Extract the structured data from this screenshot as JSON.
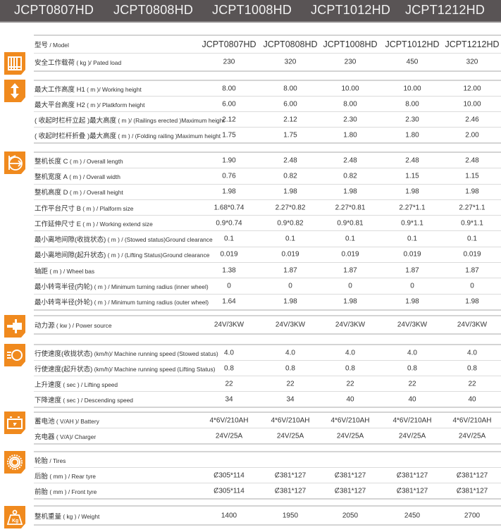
{
  "banner": {
    "models": [
      "JCPT0807HD",
      "JCPT0808HD",
      "JCPT1008HD",
      "JCPT1012HD",
      "JCPT1212HD"
    ]
  },
  "accent_color": "#f08a1e",
  "banner_color": "#595455",
  "groups": [
    {
      "icon": "guardrail-icon",
      "rows": [
        {
          "cn": "型号",
          "en": " / Model",
          "values": [
            "JCPT0807HD",
            "JCPT0808HD",
            "JCPT1008HD",
            "JCPT1012HD",
            "JCPT1212HD"
          ]
        },
        {
          "cn": "安全工作载荷",
          "en": " ( kg )/ Pated load",
          "values": [
            "230",
            "320",
            "230",
            "450",
            "320"
          ]
        }
      ]
    },
    {
      "icon": "vertical-arrows-icon",
      "rows": [
        {
          "cn": "最大工作高度 H1",
          "en": " ( m )/ Working height",
          "values": [
            "8.00",
            "8.00",
            "10.00",
            "10.00",
            "12.00"
          ]
        },
        {
          "cn": "最大平台高度 H2",
          "en": " ( m )/ Platkform height",
          "values": [
            "6.00",
            "6.00",
            "8.00",
            "8.00",
            "10.00"
          ]
        },
        {
          "cn": "( 收起时栏杆立起 )最大高度",
          "en": " ( m )/ (Railings erected )Maximum height",
          "values": [
            "2.12",
            "2.12",
            "2.30",
            "2.30",
            "2.46"
          ]
        },
        {
          "cn": "( 收起时栏杆折叠 )最大高度",
          "en": " ( m ) / (Folding railing )Maximum height",
          "values": [
            "1.75",
            "1.75",
            "1.80",
            "1.80",
            "2.00"
          ]
        }
      ]
    },
    {
      "icon": "dimensions-icon",
      "rows": [
        {
          "cn": "整机长度 C",
          "en": " ( m ) / Overall length",
          "values": [
            "1.90",
            "2.48",
            "2.48",
            "2.48",
            "2.48"
          ]
        },
        {
          "cn": "整机宽度 A",
          "en": " ( m ) / Overall width",
          "values": [
            "0.76",
            "0.82",
            "0.82",
            "1.15",
            "1.15"
          ]
        },
        {
          "cn": "整机高度 D",
          "en": " ( m ) / Overall height",
          "values": [
            "1.98",
            "1.98",
            "1.98",
            "1.98",
            "1.98"
          ]
        },
        {
          "cn": "工作平台尺寸 B",
          "en": " ( m ) / Plalform size",
          "values": [
            "1.68*0.74",
            "2.27*0.82",
            "2.27*0.81",
            "2.27*1.1",
            "2.27*1.1"
          ]
        },
        {
          "cn": "工作延伸尺寸 E",
          "en": " ( m ) / Working extend size",
          "values": [
            "0.9*0.74",
            "0.9*0.82",
            "0.9*0.81",
            "0.9*1.1",
            "0.9*1.1"
          ]
        },
        {
          "cn": "最小离地间隙(收拢状态)",
          "en": " ( m ) / (Stowed status)Ground clearance",
          "values": [
            "0.1",
            "0.1",
            "0.1",
            "0.1",
            "0.1"
          ]
        },
        {
          "cn": "最小离地间隙(起升状态)",
          "en": " ( m ) / (Lifting Status)Ground clearance",
          "values": [
            "0.019",
            "0.019",
            "0.019",
            "0.019",
            "0.019"
          ]
        },
        {
          "cn": "轴距",
          "en": " ( m ) / Wheel bas",
          "values": [
            "1.38",
            "1.87",
            "1.87",
            "1.87",
            "1.87"
          ]
        },
        {
          "cn": "最小转弯半径(内轮)",
          "en": " ( m ) / Minimum turning radius (inner wheel)",
          "values": [
            "0",
            "0",
            "0",
            "0",
            "0"
          ]
        },
        {
          "cn": "最小转弯半径(外轮)",
          "en": " ( m ) / Minimum turning radius (outer wheel)",
          "values": [
            "1.64",
            "1.98",
            "1.98",
            "1.98",
            "1.98"
          ]
        }
      ]
    },
    {
      "icon": "power-plug-icon",
      "rows": [
        {
          "cn": "动力源",
          "en": " ( kw ) / Power source",
          "values": [
            "24V/3KW",
            "24V/3KW",
            "24V/3KW",
            "24V/3KW",
            "24V/3KW"
          ]
        }
      ]
    },
    {
      "icon": "speed-icon",
      "rows": [
        {
          "cn": "行使速度(收拢状态)",
          "en": " (km/h)/ Machine running speed (Stowed status)",
          "values": [
            "4.0",
            "4.0",
            "4.0",
            "4.0",
            "4.0"
          ]
        },
        {
          "cn": "行使速度(起升状态)",
          "en": " (km/h)/ Machine running speed (Lifting Status)",
          "values": [
            "0.8",
            "0.8",
            "0.8",
            "0.8",
            "0.8"
          ]
        },
        {
          "cn": "上升速度",
          "en": " ( sec ) / Lifting speed",
          "values": [
            "22",
            "22",
            "22",
            "22",
            "22"
          ]
        },
        {
          "cn": "下降速度",
          "en": " ( sec ) / Descending speed",
          "values": [
            "34",
            "34",
            "40",
            "40",
            "40"
          ]
        }
      ]
    },
    {
      "icon": "battery-icon",
      "rows": [
        {
          "cn": "蓄电池",
          "en": " ( V/AH )/ Battery",
          "values": [
            "4*6V/210AH",
            "4*6V/210AH",
            "4*6V/210AH",
            "4*6V/210AH",
            "4*6V/210AH"
          ]
        },
        {
          "cn": "充电器",
          "en": " ( V/A)/ Charger",
          "values": [
            "24V/25A",
            "24V/25A",
            "24V/25A",
            "24V/25A",
            "24V/25A"
          ]
        }
      ]
    },
    {
      "icon": "tire-icon",
      "rows": [
        {
          "cn": "轮胎",
          "en": " / Tires",
          "values": [
            "",
            "",
            "",
            "",
            ""
          ]
        },
        {
          "cn": "后胎",
          "en": " ( mm ) / Rear tyre",
          "values": [
            "Ȼ305*114",
            "Ȼ381*127",
            "Ȼ381*127",
            "Ȼ381*127",
            "Ȼ381*127"
          ]
        },
        {
          "cn": "前胎",
          "en": " ( mm ) / Front tyre",
          "values": [
            "Ȼ305*114",
            "Ȼ381*127",
            "Ȼ381*127",
            "Ȼ381*127",
            "Ȼ381*127"
          ]
        }
      ]
    },
    {
      "icon": "weight-kg-icon",
      "rows": [
        {
          "cn": "整机重量",
          "en": " ( kg ) / Weight",
          "values": [
            "1400",
            "1950",
            "2050",
            "2450",
            "2700"
          ]
        }
      ]
    }
  ]
}
